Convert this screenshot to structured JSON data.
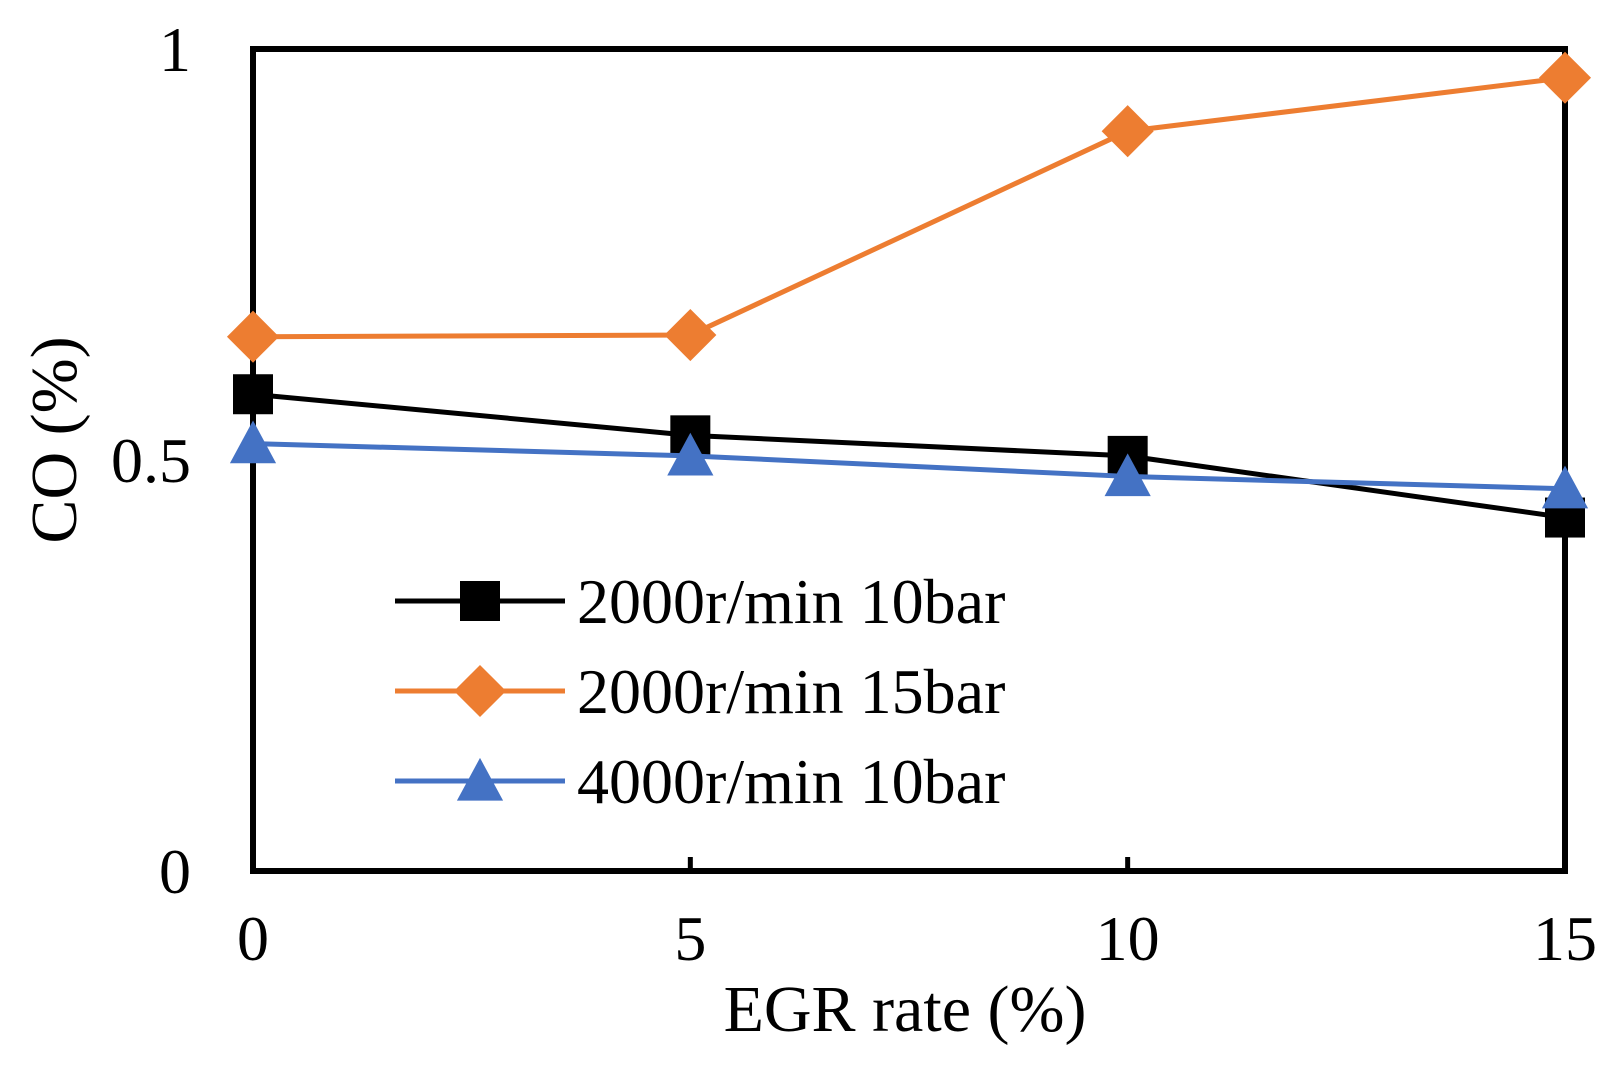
{
  "chart_data": {
    "type": "line",
    "title": "",
    "xlabel": "EGR rate (%)",
    "ylabel": "CO (%)",
    "x": [
      0,
      5,
      10,
      15
    ],
    "x_ticks": [
      "0",
      "5",
      "10",
      "15"
    ],
    "y_ticks": [
      "0",
      "0.5",
      "1"
    ],
    "xlim": [
      0,
      15
    ],
    "ylim": [
      0,
      1
    ],
    "grid": false,
    "legend_position": "lower-left inside",
    "series": [
      {
        "name": "2000r/min 10bar",
        "values": [
          0.58,
          0.53,
          0.505,
          0.43
        ],
        "color": "#000000",
        "marker": "square"
      },
      {
        "name": "2000r/min 15bar",
        "values": [
          0.65,
          0.652,
          0.9,
          0.965
        ],
        "color": "#ED7D31",
        "marker": "diamond"
      },
      {
        "name": "4000r/min 10bar",
        "values": [
          0.52,
          0.505,
          0.48,
          0.465
        ],
        "color": "#4472C4",
        "marker": "triangle"
      }
    ]
  }
}
